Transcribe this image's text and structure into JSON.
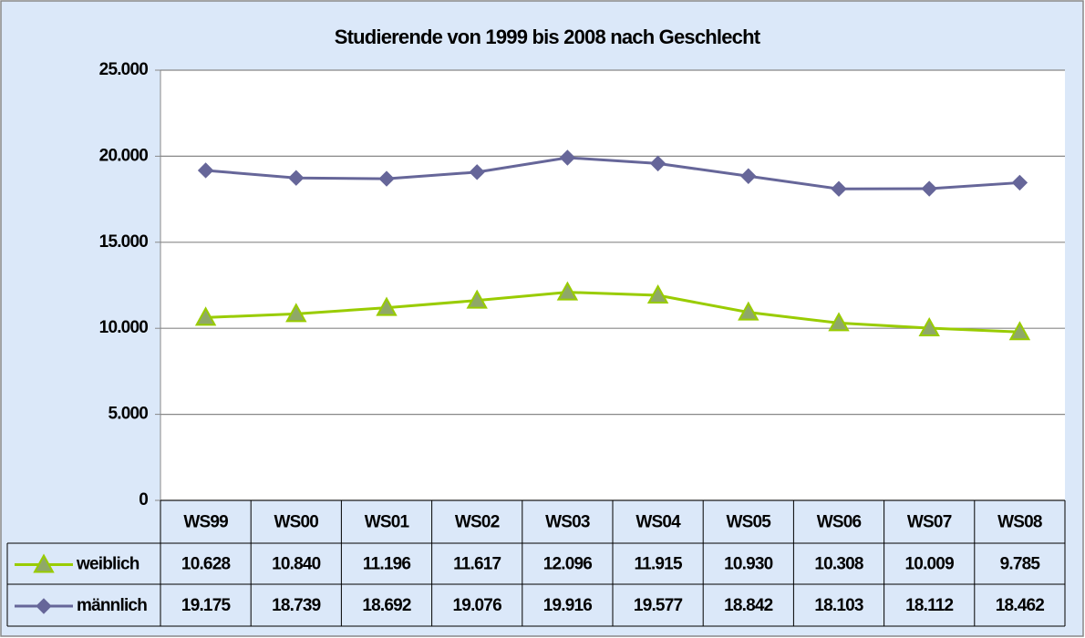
{
  "chart_data": {
    "type": "line",
    "title": "Studierende von 1999 bis 2008 nach Geschlecht",
    "categories": [
      "WS99",
      "WS00",
      "WS01",
      "WS02",
      "WS03",
      "WS04",
      "WS05",
      "WS06",
      "WS07",
      "WS08"
    ],
    "series": [
      {
        "name": "weiblich",
        "color": "#99cc00",
        "marker": "triangle",
        "values": [
          10628,
          10840,
          11196,
          11617,
          12096,
          11915,
          10930,
          10308,
          10009,
          9785
        ],
        "value_labels": [
          "10.628",
          "10.840",
          "11.196",
          "11.617",
          "12.096",
          "11.915",
          "10.930",
          "10.308",
          "10.009",
          "9.785"
        ]
      },
      {
        "name": "männlich",
        "color": "#666699",
        "marker": "diamond",
        "values": [
          19175,
          18739,
          18692,
          19076,
          19916,
          19577,
          18842,
          18103,
          18112,
          18462
        ],
        "value_labels": [
          "19.175",
          "18.739",
          "18.692",
          "19.076",
          "19.916",
          "19.577",
          "18.842",
          "18.103",
          "18.112",
          "18.462"
        ]
      }
    ],
    "ylim": [
      0,
      25000
    ],
    "yticks": [
      0,
      {
        "value": 5000,
        "label": "5.000"
      },
      {
        "value": 10000,
        "label": "10.000"
      },
      {
        "value": 15000,
        "label": "15.000"
      },
      {
        "value": 20000,
        "label": "20.000"
      },
      {
        "value": 25000,
        "label": "25.000"
      }
    ],
    "grid": true,
    "data_table": true
  }
}
